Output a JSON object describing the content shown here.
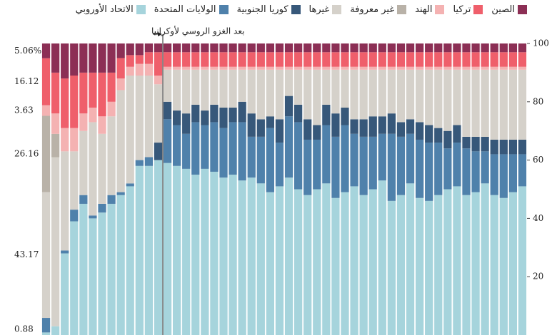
{
  "chart_data": {
    "type": "stacked_bar",
    "annotation": "بعد الغزو الروسي لأوكرانيا",
    "first_bar_labels": [
      "5.06%",
      "16.12",
      "3.63",
      "26.16",
      "43.17",
      "0.88"
    ],
    "ylim": [
      0,
      100
    ],
    "yticks": [
      20,
      40,
      60,
      80,
      100
    ],
    "categories": [
      null,
      null,
      null,
      null,
      null,
      null,
      null,
      null,
      null,
      null,
      null,
      null,
      null,
      null,
      null,
      null,
      null,
      null,
      null,
      null,
      null,
      null,
      null,
      null,
      null,
      null,
      null,
      null,
      null,
      null,
      null,
      null,
      null,
      null,
      null,
      null,
      null,
      null,
      null,
      null,
      null,
      null,
      null,
      null,
      null,
      null,
      null,
      null,
      null,
      null,
      null,
      null
    ],
    "series": [
      {
        "name": "الاتحاد الأوروبي",
        "color": "#a6d4dc",
        "values": [
          0.88,
          3,
          28,
          39,
          45,
          40,
          42,
          45,
          48,
          51,
          58,
          58,
          60,
          59,
          58,
          57,
          55,
          57,
          56,
          54,
          55,
          53,
          54,
          52,
          49,
          51,
          54,
          50,
          48,
          50,
          52,
          47,
          49,
          51,
          48,
          50,
          53,
          46,
          48,
          52,
          47,
          46,
          48,
          50,
          51,
          48,
          49,
          52,
          48,
          47,
          49,
          51
        ]
      },
      {
        "name": "الولايات المتحدة",
        "color": "#4f81ab",
        "values": [
          4.98,
          0,
          1,
          4,
          3,
          1,
          3,
          3,
          1,
          1,
          2,
          3,
          0,
          15,
          14,
          12,
          18,
          15,
          17,
          17,
          18,
          20,
          14,
          16,
          22,
          15,
          21,
          23,
          19,
          17,
          20,
          21,
          23,
          18,
          20,
          18,
          16,
          23,
          20,
          17,
          20,
          20,
          18,
          14,
          15,
          16,
          14,
          11,
          14,
          15,
          13,
          11
        ]
      },
      {
        "name": "كوريا الجنوبية",
        "color": "#37587a",
        "values": [
          0,
          0,
          0,
          0,
          0,
          0,
          0,
          0,
          0,
          0,
          0,
          0,
          6,
          6,
          5,
          7,
          6,
          5,
          6,
          7,
          5,
          7,
          8,
          6,
          4,
          8,
          7,
          6,
          7,
          5,
          7,
          8,
          6,
          5,
          6,
          7,
          6,
          7,
          5,
          5,
          6,
          6,
          5,
          6,
          6,
          4,
          5,
          5,
          5,
          5,
          5,
          5
        ]
      },
      {
        "name": "غيرها",
        "color": "#d5d1ca",
        "values": [
          43.17,
          58,
          34,
          20,
          22,
          32,
          24,
          27,
          35,
          37,
          29,
          28,
          20,
          11,
          14,
          15,
          12,
          14,
          12,
          13,
          13,
          11,
          15,
          17,
          16,
          17,
          9,
          12,
          17,
          19,
          12,
          15,
          13,
          17,
          17,
          16,
          16,
          15,
          18,
          17,
          18,
          19,
          20,
          21,
          19,
          23,
          23,
          23,
          24,
          24,
          24,
          24
        ]
      },
      {
        "name": "غير معروفة",
        "color": "#b9b2a8",
        "values": [
          26.16,
          8,
          0,
          0,
          0,
          0,
          0,
          0,
          0,
          0,
          0,
          0,
          0,
          0,
          0,
          0,
          0,
          0,
          0,
          0,
          0,
          0,
          0,
          0,
          0,
          0,
          0,
          0,
          0,
          0,
          0,
          0,
          0,
          0,
          0,
          0,
          0,
          0,
          0,
          0,
          0,
          0,
          0,
          0,
          0,
          0,
          0,
          0,
          0,
          0,
          0,
          0
        ]
      },
      {
        "name": "الهند",
        "color": "#f4b2b2",
        "values": [
          3.63,
          7,
          8,
          8,
          6,
          5,
          6,
          5,
          4,
          3,
          4,
          4,
          3,
          1,
          1,
          1,
          1,
          1,
          1,
          1,
          1,
          1,
          1,
          1,
          1,
          1,
          1,
          1,
          1,
          1,
          1,
          1,
          1,
          1,
          1,
          1,
          1,
          1,
          1,
          1,
          1,
          1,
          1,
          1,
          1,
          1,
          1,
          1,
          1,
          1,
          1,
          1
        ]
      },
      {
        "name": "تركيا",
        "color": "#ef5f6b",
        "values": [
          16.12,
          14,
          17,
          18,
          14,
          12,
          15,
          10,
          7,
          4,
          3,
          4,
          8,
          5,
          5,
          5,
          5,
          5,
          5,
          5,
          5,
          5,
          5,
          5,
          5,
          5,
          5,
          5,
          5,
          5,
          5,
          5,
          5,
          5,
          5,
          5,
          5,
          5,
          5,
          5,
          5,
          5,
          5,
          5,
          5,
          5,
          5,
          5,
          5,
          5,
          5,
          5
        ]
      },
      {
        "name": "الصين",
        "color": "#8c2f55",
        "values": [
          5.06,
          10,
          12,
          11,
          10,
          10,
          10,
          10,
          5,
          4,
          4,
          3,
          3,
          3,
          3,
          3,
          3,
          3,
          3,
          3,
          3,
          3,
          3,
          3,
          3,
          3,
          3,
          3,
          3,
          3,
          3,
          3,
          3,
          3,
          3,
          3,
          3,
          3,
          3,
          3,
          3,
          3,
          3,
          3,
          3,
          3,
          3,
          3,
          3,
          3,
          3,
          3
        ]
      }
    ]
  }
}
